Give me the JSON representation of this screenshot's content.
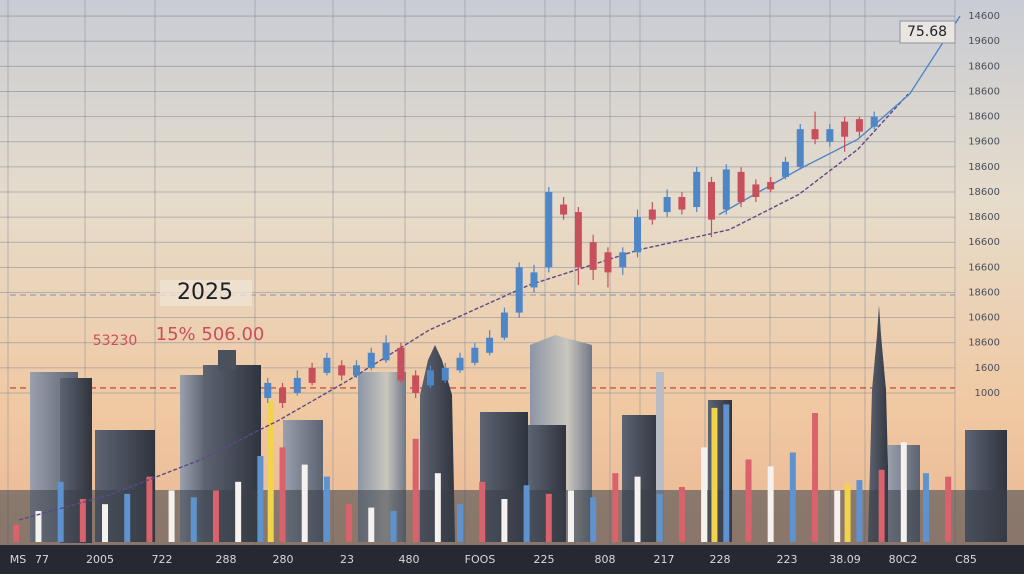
{
  "chart_data": {
    "type": "candlestick",
    "x": [
      0,
      1,
      2,
      3,
      4,
      5,
      6,
      7,
      8,
      9,
      10,
      11,
      12,
      13,
      14,
      15,
      16,
      17,
      18,
      19,
      20,
      21,
      22,
      23,
      24,
      25,
      26,
      27,
      28,
      29,
      30,
      31,
      32,
      33,
      34,
      35,
      36,
      37,
      38,
      39,
      40,
      41
    ],
    "open": [
      -0.2,
      0.2,
      0.0,
      1.0,
      0.8,
      1.1,
      0.7,
      1.0,
      1.3,
      1.8,
      0.7,
      0.3,
      0.5,
      0.9,
      1.2,
      1.6,
      2.2,
      3.2,
      4.2,
      5.0,
      7.5,
      7.2,
      6.0,
      5.6,
      5.0,
      5.6,
      7.3,
      7.2,
      7.8,
      7.4,
      8.4,
      7.3,
      8.8,
      8.3,
      8.4,
      8.6,
      9.0,
      10.5,
      10.0,
      10.8,
      10.9,
      10.6
    ],
    "close": [
      0.4,
      -0.4,
      0.6,
      0.4,
      1.4,
      0.7,
      1.1,
      1.6,
      2.0,
      0.5,
      0.0,
      0.9,
      1.0,
      1.4,
      1.8,
      2.2,
      3.2,
      5.0,
      4.8,
      8.0,
      7.1,
      5.0,
      4.9,
      4.8,
      5.6,
      7.0,
      6.9,
      7.8,
      7.3,
      8.8,
      6.9,
      8.9,
      7.6,
      7.8,
      8.1,
      9.2,
      10.5,
      10.1,
      10.5,
      10.2,
      10.4,
      11.0
    ],
    "high": [
      0.6,
      0.4,
      0.9,
      1.2,
      1.6,
      1.3,
      1.3,
      1.8,
      2.3,
      2.0,
      0.9,
      1.1,
      1.2,
      1.6,
      2.0,
      2.5,
      3.4,
      5.2,
      5.1,
      8.2,
      7.8,
      7.4,
      6.3,
      5.8,
      5.8,
      7.3,
      7.6,
      8.1,
      8.0,
      9.0,
      8.6,
      9.1,
      9.0,
      8.5,
      8.6,
      9.4,
      10.7,
      11.2,
      10.7,
      11.0,
      11.0,
      11.2
    ],
    "low": [
      -0.4,
      -0.6,
      -0.1,
      0.3,
      0.7,
      0.5,
      0.6,
      0.9,
      1.2,
      0.4,
      -0.2,
      0.2,
      0.4,
      0.8,
      1.1,
      1.5,
      2.1,
      3.0,
      4.0,
      4.8,
      6.9,
      4.3,
      4.5,
      4.2,
      4.7,
      5.4,
      6.7,
      7.0,
      7.1,
      7.2,
      6.2,
      7.1,
      7.4,
      7.6,
      8.0,
      8.5,
      8.9,
      9.9,
      9.8,
      9.6,
      10.2,
      10.5
    ],
    "up_color": "#4f86c6",
    "down_color": "#c8505c",
    "xlim": [
      -18.1,
      46.8
    ],
    "ylim": [
      -6.05,
      15.64
    ],
    "yticks": [
      {
        "value": 15,
        "label": "14600"
      },
      {
        "value": 14,
        "label": "19600"
      },
      {
        "value": 13,
        "label": "18600"
      },
      {
        "value": 12,
        "label": "18600"
      },
      {
        "value": 11,
        "label": "18600"
      },
      {
        "value": 10,
        "label": "19600"
      },
      {
        "value": 9,
        "label": "18600"
      },
      {
        "value": 8,
        "label": "18600"
      },
      {
        "value": 7,
        "label": "18600"
      },
      {
        "value": 6,
        "label": "16600"
      },
      {
        "value": 5,
        "label": "16600"
      },
      {
        "value": 4,
        "label": "18600"
      },
      {
        "value": 3,
        "label": "10600"
      },
      {
        "value": 2,
        "label": "18600"
      },
      {
        "value": 1,
        "label": "1600"
      },
      {
        "value": 0,
        "label": "1000"
      }
    ],
    "grid": true,
    "x_axis_labels": [
      "MS",
      "77",
      "2005",
      "722",
      "288",
      "280",
      "23",
      "480",
      "FOOS",
      "225",
      "808",
      "217",
      "228",
      "223",
      "38.09",
      "80C2",
      "C85"
    ],
    "lines": [
      {
        "color": "#5b4a86",
        "dashed": true,
        "x": [
          -16.8,
          -10.7,
          -4.6,
          0.8,
          5.5,
          10.9,
          17.7,
          25.1,
          31.2,
          35.9,
          39.9,
          43.3
        ],
        "values": [
          -5.05,
          -4.06,
          -2.67,
          -1.07,
          0.52,
          2.5,
          4.3,
          5.7,
          6.5,
          7.9,
          9.7,
          11.9
        ]
      },
      {
        "color": "#4f86c6",
        "dashed": false,
        "x": [
          30.5,
          35.9,
          39.9,
          43.4,
          46.8
        ],
        "values": [
          7.1,
          8.9,
          10.1,
          11.9,
          15.0
        ]
      }
    ],
    "y2lim": [
      0,
      100
    ],
    "volume": [
      {
        "color": "#d9626c",
        "x": [
          -17,
          -12.5,
          -8,
          -3.5,
          1,
          5.5,
          10,
          14.5,
          19,
          23.5,
          28,
          32.5,
          37,
          41.5,
          46
        ],
        "values": [
          10,
          25,
          38,
          30,
          55,
          22,
          60,
          35,
          28,
          40,
          32,
          48,
          75,
          42,
          38
        ]
      },
      {
        "color": "#f4f1ee",
        "x": [
          -15.5,
          -11,
          -6.5,
          -2,
          2.5,
          7,
          11.5,
          16,
          20.5,
          25,
          29.5,
          34,
          38.5,
          43
        ],
        "values": [
          18,
          22,
          30,
          35,
          45,
          20,
          40,
          25,
          30,
          38,
          55,
          44,
          30,
          58
        ]
      },
      {
        "color": "#5f93cf",
        "x": [
          -14,
          -9.5,
          -5,
          -0.5,
          4,
          8.5,
          13,
          17.5,
          22,
          26.5,
          31,
          35.5,
          40,
          44.5
        ],
        "values": [
          35,
          28,
          26,
          50,
          38,
          18,
          22,
          33,
          26,
          28,
          80,
          52,
          36,
          40
        ]
      },
      {
        "color": "#f2d44c",
        "x": [
          0.2,
          30.2,
          39.2
        ],
        "values": [
          82,
          78,
          34
        ]
      }
    ],
    "reference_lines": [
      {
        "value": 0.2,
        "color": "#c0392b"
      },
      {
        "value": 3.9,
        "color": "#9aa0aa"
      }
    ],
    "annotations": {
      "year": "2025",
      "left_value": "53230",
      "change": "15% 506.00",
      "last_price": "75.68"
    }
  }
}
